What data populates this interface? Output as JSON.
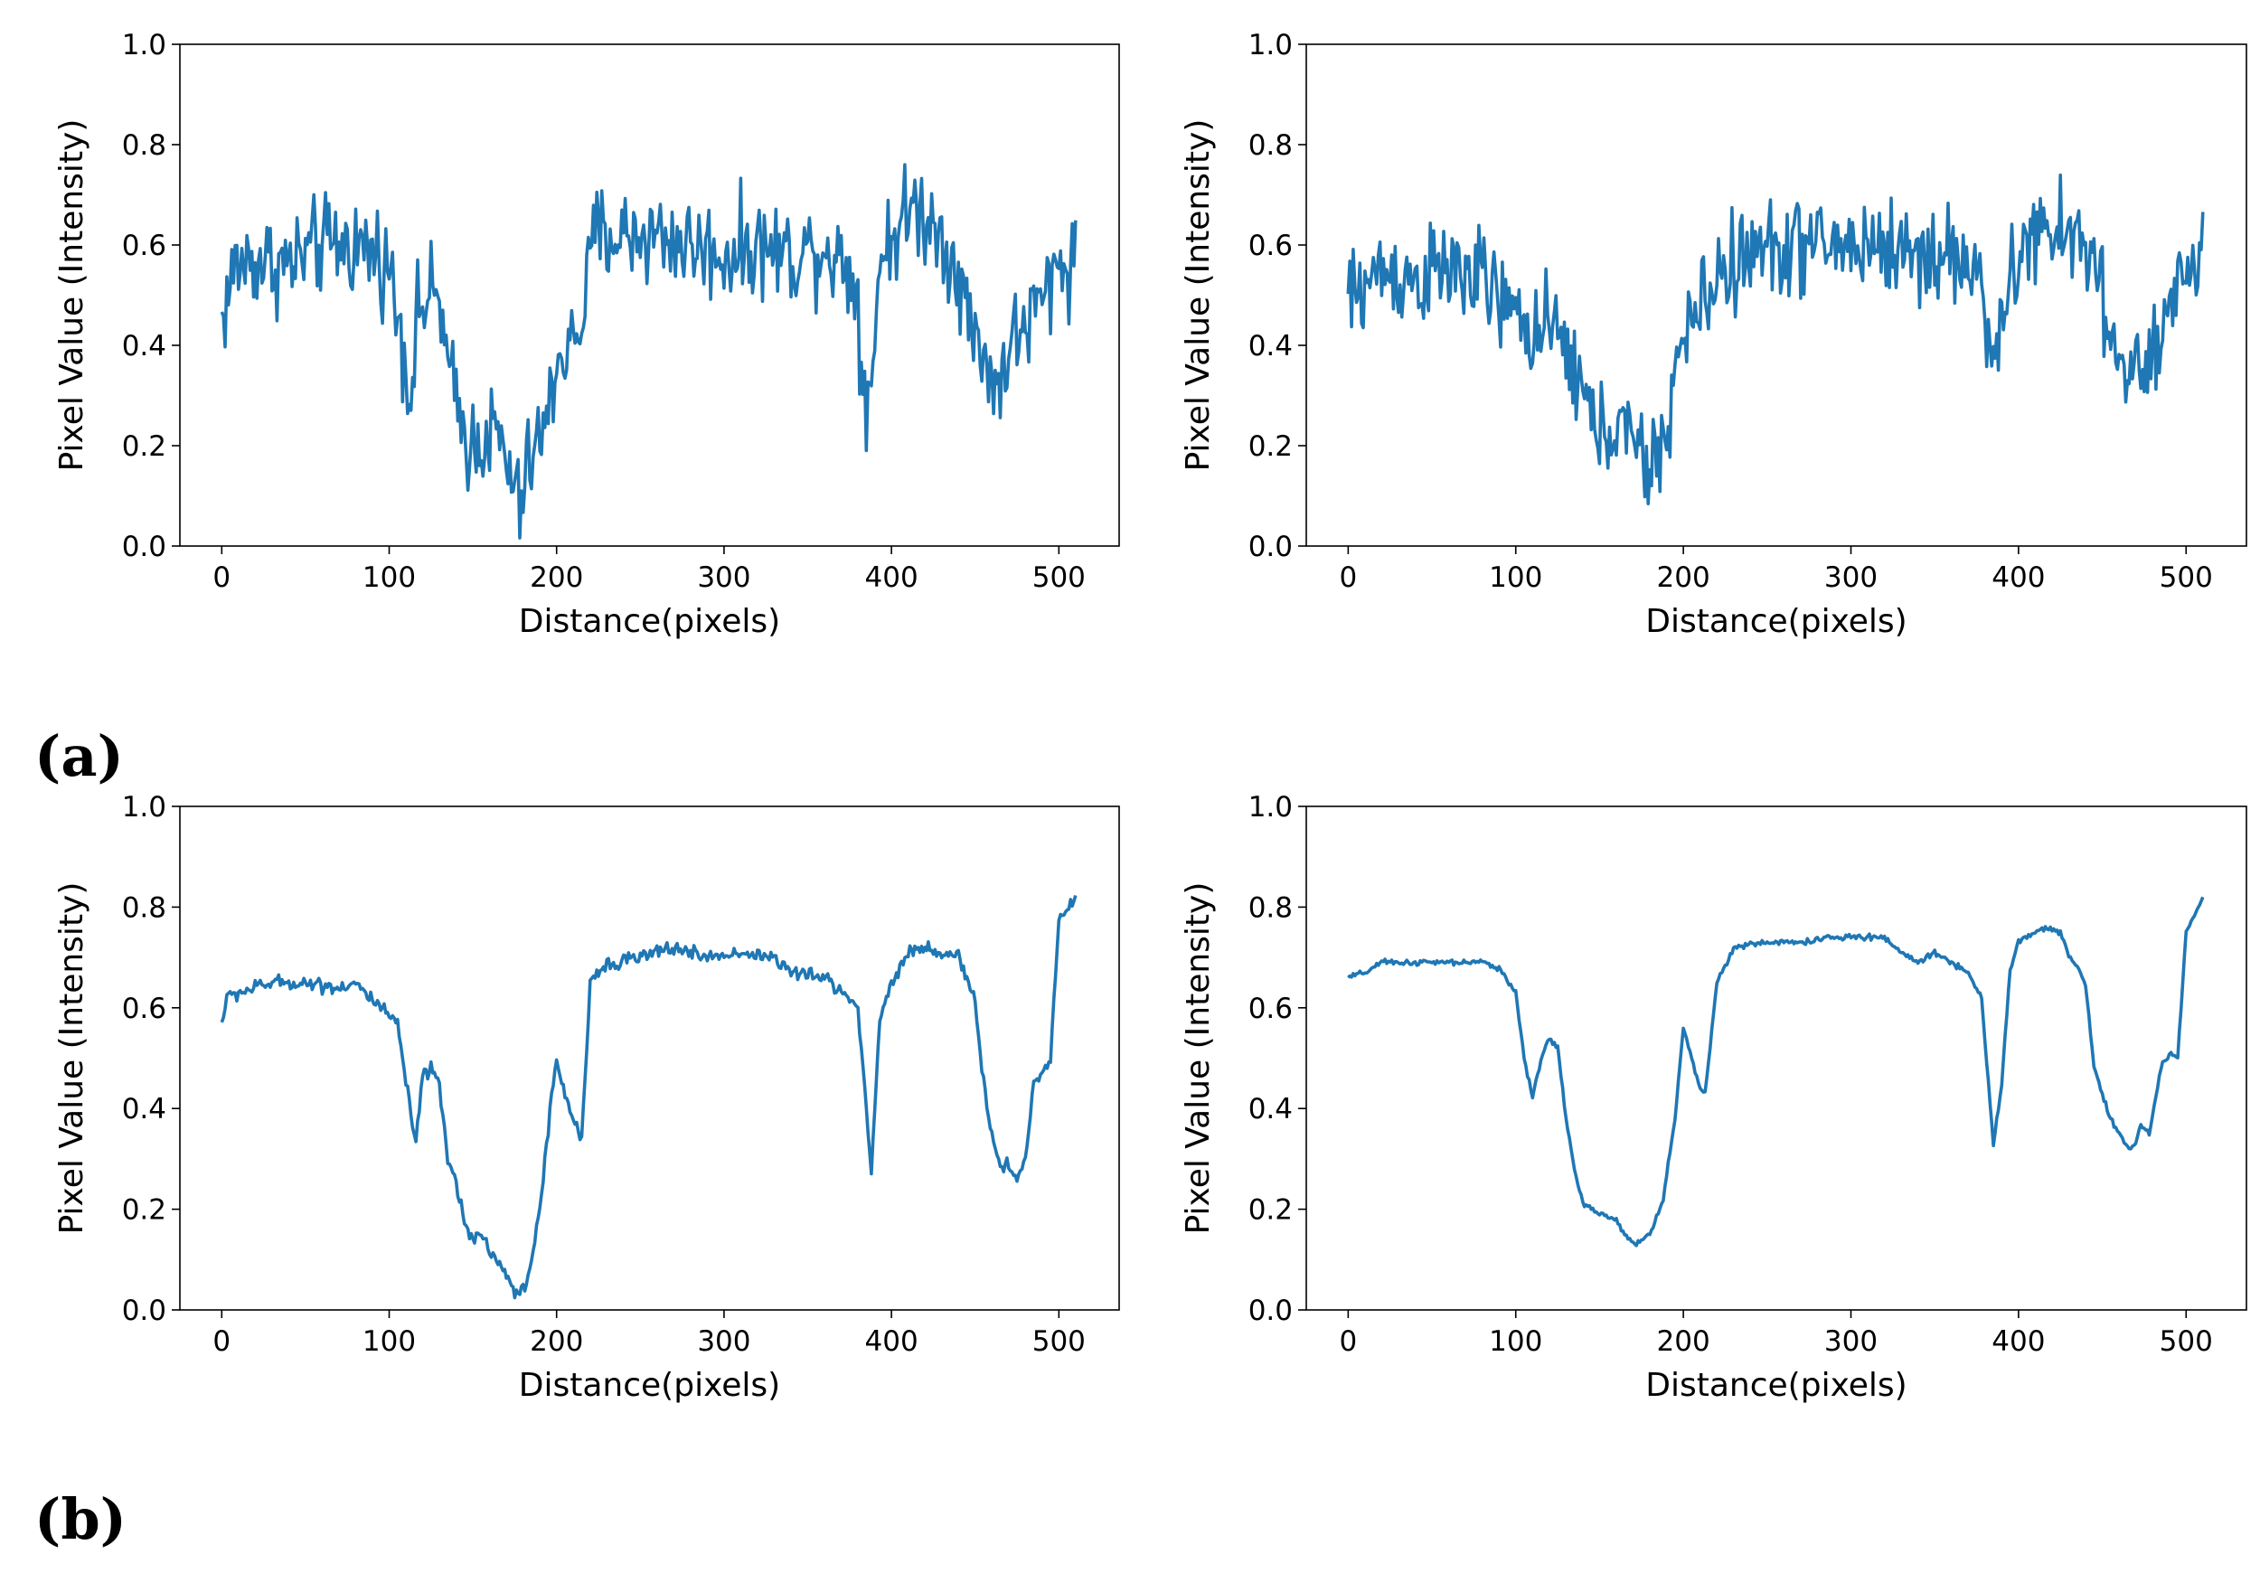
{
  "panel_labels": [
    "(a)",
    "(b)"
  ],
  "style": {
    "line_color": "#1f77b4",
    "axis_color": "#000000"
  },
  "chart_data": [
    {
      "type": "line",
      "panel": "(a) left",
      "xlabel": "Distance(pixels)",
      "ylabel": "Pixel Value (Intensity)",
      "xlim": [
        -25,
        536
      ],
      "ylim": [
        0,
        1
      ],
      "xticks": [
        0,
        100,
        200,
        300,
        400,
        500
      ],
      "yticks": [
        0.0,
        0.2,
        0.4,
        0.6,
        0.8,
        1.0
      ],
      "grid": false,
      "noise": 0.07,
      "points": [
        [
          0,
          0.45
        ],
        [
          8,
          0.56
        ],
        [
          20,
          0.57
        ],
        [
          40,
          0.56
        ],
        [
          60,
          0.6
        ],
        [
          80,
          0.6
        ],
        [
          95,
          0.58
        ],
        [
          100,
          0.55
        ],
        [
          108,
          0.42
        ],
        [
          112,
          0.3
        ],
        [
          118,
          0.48
        ],
        [
          130,
          0.5
        ],
        [
          135,
          0.35
        ],
        [
          140,
          0.28
        ],
        [
          148,
          0.2
        ],
        [
          155,
          0.22
        ],
        [
          165,
          0.22
        ],
        [
          172,
          0.14
        ],
        [
          178,
          0.08
        ],
        [
          185,
          0.18
        ],
        [
          195,
          0.25
        ],
        [
          200,
          0.38
        ],
        [
          210,
          0.4
        ],
        [
          218,
          0.5
        ],
        [
          222,
          0.62
        ],
        [
          240,
          0.62
        ],
        [
          260,
          0.62
        ],
        [
          280,
          0.6
        ],
        [
          300,
          0.58
        ],
        [
          320,
          0.6
        ],
        [
          340,
          0.58
        ],
        [
          360,
          0.6
        ],
        [
          375,
          0.55
        ],
        [
          380,
          0.5
        ],
        [
          383,
          0.3
        ],
        [
          388,
          0.32
        ],
        [
          392,
          0.55
        ],
        [
          400,
          0.62
        ],
        [
          415,
          0.68
        ],
        [
          430,
          0.62
        ],
        [
          440,
          0.55
        ],
        [
          448,
          0.42
        ],
        [
          455,
          0.4
        ],
        [
          462,
          0.3
        ],
        [
          468,
          0.38
        ],
        [
          480,
          0.44
        ],
        [
          492,
          0.5
        ],
        [
          500,
          0.56
        ],
        [
          510,
          0.58
        ]
      ]
    },
    {
      "type": "line",
      "panel": "(a) right",
      "xlabel": "Distance(pixels)",
      "ylabel": "Pixel Value (Intensity)",
      "xlim": [
        -25,
        536
      ],
      "ylim": [
        0,
        1
      ],
      "xticks": [
        0,
        100,
        200,
        300,
        400,
        500
      ],
      "yticks": [
        0.0,
        0.2,
        0.4,
        0.6,
        0.8,
        1.0
      ],
      "grid": false,
      "noise": 0.07,
      "points": [
        [
          0,
          0.49
        ],
        [
          10,
          0.52
        ],
        [
          20,
          0.55
        ],
        [
          40,
          0.53
        ],
        [
          60,
          0.55
        ],
        [
          80,
          0.53
        ],
        [
          100,
          0.45
        ],
        [
          115,
          0.43
        ],
        [
          130,
          0.4
        ],
        [
          140,
          0.3
        ],
        [
          150,
          0.22
        ],
        [
          160,
          0.25
        ],
        [
          170,
          0.2
        ],
        [
          180,
          0.15
        ],
        [
          188,
          0.2
        ],
        [
          195,
          0.35
        ],
        [
          205,
          0.45
        ],
        [
          215,
          0.5
        ],
        [
          222,
          0.55
        ],
        [
          240,
          0.58
        ],
        [
          260,
          0.6
        ],
        [
          280,
          0.6
        ],
        [
          300,
          0.6
        ],
        [
          320,
          0.6
        ],
        [
          340,
          0.58
        ],
        [
          360,
          0.58
        ],
        [
          375,
          0.55
        ],
        [
          382,
          0.45
        ],
        [
          388,
          0.35
        ],
        [
          395,
          0.55
        ],
        [
          410,
          0.62
        ],
        [
          430,
          0.62
        ],
        [
          448,
          0.58
        ],
        [
          452,
          0.42
        ],
        [
          460,
          0.36
        ],
        [
          470,
          0.35
        ],
        [
          480,
          0.35
        ],
        [
          490,
          0.45
        ],
        [
          500,
          0.55
        ],
        [
          510,
          0.62
        ]
      ]
    },
    {
      "type": "line",
      "panel": "(b) left",
      "xlabel": "Distance(pixels)",
      "ylabel": "Pixel Value (Intensity)",
      "xlim": [
        -25,
        536
      ],
      "ylim": [
        0,
        1
      ],
      "xticks": [
        0,
        100,
        200,
        300,
        400,
        500
      ],
      "yticks": [
        0.0,
        0.2,
        0.4,
        0.6,
        0.8,
        1.0
      ],
      "grid": false,
      "noise": 0.01,
      "points": [
        [
          0,
          0.57
        ],
        [
          3,
          0.62
        ],
        [
          10,
          0.63
        ],
        [
          30,
          0.65
        ],
        [
          50,
          0.65
        ],
        [
          70,
          0.64
        ],
        [
          80,
          0.65
        ],
        [
          85,
          0.63
        ],
        [
          95,
          0.6
        ],
        [
          100,
          0.58
        ],
        [
          105,
          0.57
        ],
        [
          110,
          0.45
        ],
        [
          116,
          0.33
        ],
        [
          120,
          0.46
        ],
        [
          125,
          0.48
        ],
        [
          130,
          0.44
        ],
        [
          135,
          0.3
        ],
        [
          140,
          0.25
        ],
        [
          145,
          0.18
        ],
        [
          150,
          0.14
        ],
        [
          155,
          0.15
        ],
        [
          160,
          0.12
        ],
        [
          170,
          0.07
        ],
        [
          175,
          0.03
        ],
        [
          182,
          0.05
        ],
        [
          190,
          0.2
        ],
        [
          197,
          0.42
        ],
        [
          200,
          0.49
        ],
        [
          205,
          0.43
        ],
        [
          210,
          0.38
        ],
        [
          215,
          0.33
        ],
        [
          220,
          0.65
        ],
        [
          230,
          0.69
        ],
        [
          250,
          0.7
        ],
        [
          270,
          0.72
        ],
        [
          290,
          0.7
        ],
        [
          310,
          0.71
        ],
        [
          330,
          0.7
        ],
        [
          340,
          0.67
        ],
        [
          360,
          0.66
        ],
        [
          375,
          0.62
        ],
        [
          380,
          0.6
        ],
        [
          385,
          0.4
        ],
        [
          388,
          0.27
        ],
        [
          393,
          0.58
        ],
        [
          400,
          0.65
        ],
        [
          410,
          0.71
        ],
        [
          420,
          0.72
        ],
        [
          430,
          0.71
        ],
        [
          440,
          0.7
        ],
        [
          445,
          0.65
        ],
        [
          450,
          0.62
        ],
        [
          455,
          0.45
        ],
        [
          460,
          0.35
        ],
        [
          465,
          0.28
        ],
        [
          470,
          0.29
        ],
        [
          475,
          0.26
        ],
        [
          480,
          0.3
        ],
        [
          485,
          0.45
        ],
        [
          490,
          0.47
        ],
        [
          495,
          0.5
        ],
        [
          500,
          0.78
        ],
        [
          510,
          0.82
        ]
      ]
    },
    {
      "type": "line",
      "panel": "(b) right",
      "xlabel": "Distance(pixels)",
      "ylabel": "Pixel Value (Intensity)",
      "xlim": [
        -25,
        536
      ],
      "ylim": [
        0,
        1
      ],
      "xticks": [
        0,
        100,
        200,
        300,
        400,
        500
      ],
      "yticks": [
        0.0,
        0.2,
        0.4,
        0.6,
        0.8,
        1.0
      ],
      "grid": false,
      "noise": 0.004,
      "points": [
        [
          0,
          0.66
        ],
        [
          10,
          0.67
        ],
        [
          20,
          0.69
        ],
        [
          40,
          0.69
        ],
        [
          60,
          0.69
        ],
        [
          80,
          0.69
        ],
        [
          90,
          0.68
        ],
        [
          100,
          0.63
        ],
        [
          105,
          0.5
        ],
        [
          110,
          0.42
        ],
        [
          115,
          0.5
        ],
        [
          120,
          0.54
        ],
        [
          125,
          0.52
        ],
        [
          130,
          0.38
        ],
        [
          135,
          0.28
        ],
        [
          140,
          0.21
        ],
        [
          150,
          0.19
        ],
        [
          160,
          0.18
        ],
        [
          165,
          0.15
        ],
        [
          172,
          0.13
        ],
        [
          180,
          0.15
        ],
        [
          188,
          0.22
        ],
        [
          195,
          0.38
        ],
        [
          200,
          0.56
        ],
        [
          205,
          0.5
        ],
        [
          210,
          0.44
        ],
        [
          213,
          0.43
        ],
        [
          220,
          0.65
        ],
        [
          230,
          0.72
        ],
        [
          250,
          0.73
        ],
        [
          270,
          0.73
        ],
        [
          290,
          0.74
        ],
        [
          310,
          0.74
        ],
        [
          320,
          0.74
        ],
        [
          330,
          0.71
        ],
        [
          340,
          0.69
        ],
        [
          350,
          0.71
        ],
        [
          360,
          0.69
        ],
        [
          370,
          0.67
        ],
        [
          378,
          0.62
        ],
        [
          382,
          0.45
        ],
        [
          385,
          0.33
        ],
        [
          390,
          0.45
        ],
        [
          395,
          0.68
        ],
        [
          400,
          0.73
        ],
        [
          415,
          0.76
        ],
        [
          425,
          0.75
        ],
        [
          430,
          0.7
        ],
        [
          435,
          0.68
        ],
        [
          440,
          0.65
        ],
        [
          445,
          0.48
        ],
        [
          455,
          0.38
        ],
        [
          465,
          0.32
        ],
        [
          470,
          0.33
        ],
        [
          473,
          0.37
        ],
        [
          478,
          0.35
        ],
        [
          485,
          0.48
        ],
        [
          490,
          0.51
        ],
        [
          495,
          0.5
        ],
        [
          500,
          0.75
        ],
        [
          510,
          0.82
        ]
      ]
    }
  ]
}
